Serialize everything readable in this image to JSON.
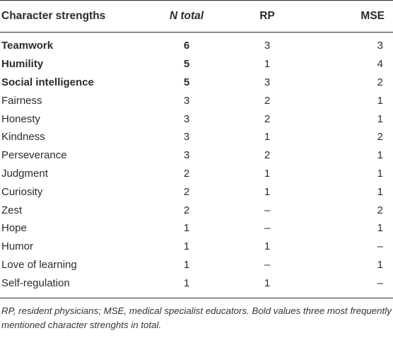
{
  "table": {
    "headers": {
      "strength": "Character strengths",
      "n_total": "N total",
      "rp": "RP",
      "mse": "MSE"
    },
    "rows": [
      {
        "strength": "Teamwork",
        "n_total": "6",
        "rp": "3",
        "mse": "3",
        "bold": true
      },
      {
        "strength": "Humility",
        "n_total": "5",
        "rp": "1",
        "mse": "4",
        "bold": true
      },
      {
        "strength": "Social intelligence",
        "n_total": "5",
        "rp": "3",
        "mse": "2",
        "bold": true
      },
      {
        "strength": "Fairness",
        "n_total": "3",
        "rp": "2",
        "mse": "1",
        "bold": false
      },
      {
        "strength": "Honesty",
        "n_total": "3",
        "rp": "2",
        "mse": "1",
        "bold": false
      },
      {
        "strength": "Kindness",
        "n_total": "3",
        "rp": "1",
        "mse": "2",
        "bold": false
      },
      {
        "strength": "Perseverance",
        "n_total": "3",
        "rp": "2",
        "mse": "1",
        "bold": false
      },
      {
        "strength": "Judgment",
        "n_total": "2",
        "rp": "1",
        "mse": "1",
        "bold": false
      },
      {
        "strength": "Curiosity",
        "n_total": "2",
        "rp": "1",
        "mse": "1",
        "bold": false
      },
      {
        "strength": "Zest",
        "n_total": "2",
        "rp": "–",
        "mse": "2",
        "bold": false
      },
      {
        "strength": "Hope",
        "n_total": "1",
        "rp": "–",
        "mse": "1",
        "bold": false
      },
      {
        "strength": "Humor",
        "n_total": "1",
        "rp": "1",
        "mse": "–",
        "bold": false
      },
      {
        "strength": "Love of learning",
        "n_total": "1",
        "rp": "–",
        "mse": "1",
        "bold": false
      },
      {
        "strength": "Self-regulation",
        "n_total": "1",
        "rp": "1",
        "mse": "–",
        "bold": false
      }
    ]
  },
  "footnote": "RP, resident physicians; MSE, medical specialist educators. Bold values three most frequently mentioned character strenghts in total."
}
